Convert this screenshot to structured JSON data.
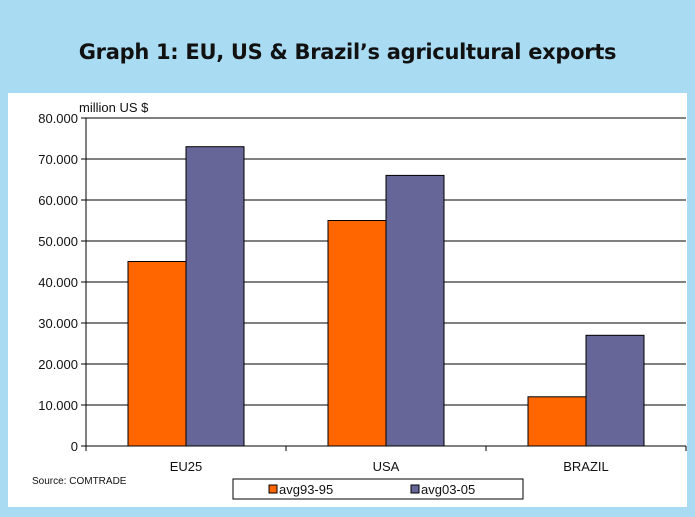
{
  "chart_data": {
    "type": "bar",
    "title": "Graph 1:  EU, US & Brazil’s agricultural exports",
    "ylabel": "million US $",
    "xlabel": "",
    "categories": [
      "EU25",
      "USA",
      "BRAZIL"
    ],
    "series": [
      {
        "name": "avg93-95",
        "values": [
          45000,
          55000,
          12000
        ],
        "color": "#ff6600"
      },
      {
        "name": "avg03-05",
        "values": [
          73000,
          66000,
          27000
        ],
        "color": "#666699"
      }
    ],
    "ylim": [
      0,
      80000
    ],
    "yticks": [
      0,
      10000,
      20000,
      30000,
      40000,
      50000,
      60000,
      70000,
      80000
    ],
    "ytick_labels": [
      "0",
      "10.000",
      "20.000",
      "30.000",
      "40.000",
      "50.000",
      "60.000",
      "70.000",
      "80.000"
    ],
    "grid": true,
    "legend_position": "bottom",
    "source": "Source: COMTRADE"
  }
}
